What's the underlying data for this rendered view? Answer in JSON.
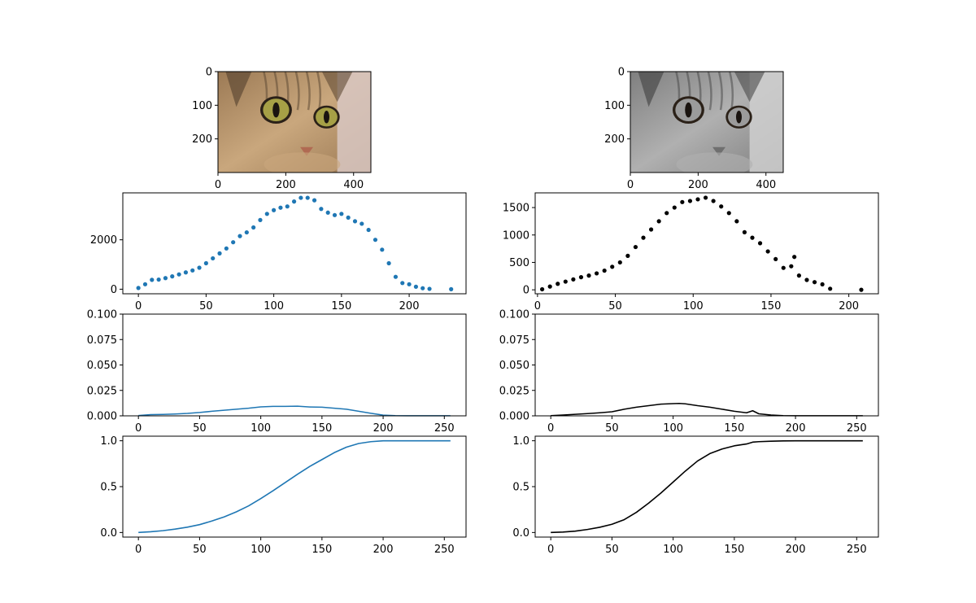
{
  "chart_data": [
    {
      "type": "image",
      "image": "cat-photo-color",
      "colors": {
        "fur_light": "#c9a77d",
        "fur_mid": "#9c7a55",
        "fur_dark": "#5f4a34",
        "eye": "#a6a046",
        "nose": "#b06a52",
        "bg": "#d8c7c2"
      },
      "xlim": [
        0,
        451
      ],
      "ylim": [
        300,
        0
      ],
      "xticks": [
        0,
        200,
        400
      ],
      "yticks": [
        0,
        100,
        200
      ]
    },
    {
      "type": "image",
      "image": "cat-photo-grayscale",
      "colors": {
        "fur_light": "#b0b0b0",
        "fur_mid": "#7f7f7f",
        "fur_dark": "#4a4a4a",
        "eye": "#9b9b9b",
        "nose": "#6f6f6f",
        "bg": "#cfcfcf"
      },
      "xlim": [
        0,
        451
      ],
      "ylim": [
        300,
        0
      ],
      "xticks": [
        0,
        200,
        400
      ],
      "yticks": [
        0,
        100,
        200
      ]
    },
    {
      "type": "scatter",
      "color": "#1f77b4",
      "xlim": [
        -11.5,
        242
      ],
      "ylim": [
        -185,
        3900
      ],
      "xticks": [
        0,
        50,
        100,
        150,
        200
      ],
      "yticks": [
        0,
        2000
      ],
      "series": [
        {
          "x": [
            0,
            5,
            10,
            15,
            20,
            25,
            30,
            35,
            40,
            45,
            50,
            55,
            60,
            65,
            70,
            75,
            80,
            85,
            90,
            95,
            100,
            105,
            110,
            115,
            120,
            125,
            130,
            135,
            140,
            145,
            150,
            155,
            160,
            165,
            170,
            175,
            180,
            185,
            190,
            195,
            200,
            205,
            210,
            215,
            231
          ],
          "y": [
            50,
            200,
            380,
            390,
            450,
            520,
            600,
            680,
            760,
            870,
            1050,
            1250,
            1450,
            1650,
            1900,
            2150,
            2300,
            2500,
            2800,
            3050,
            3200,
            3300,
            3350,
            3550,
            3700,
            3700,
            3600,
            3250,
            3100,
            3000,
            3050,
            2900,
            2750,
            2650,
            2400,
            2000,
            1600,
            1050,
            500,
            250,
            200,
            100,
            40,
            15,
            0
          ]
        }
      ]
    },
    {
      "type": "scatter",
      "color": "#000000",
      "xlim": [
        -1.5,
        219
      ],
      "ylim": [
        -72,
        1768
      ],
      "xticks": [
        0,
        50,
        100,
        150,
        200
      ],
      "yticks": [
        0,
        500,
        1000,
        1500
      ],
      "series": [
        {
          "x": [
            3,
            8,
            13,
            18,
            23,
            28,
            33,
            38,
            43,
            48,
            53,
            58,
            63,
            68,
            73,
            78,
            83,
            88,
            93,
            98,
            103,
            108,
            113,
            118,
            123,
            128,
            133,
            138,
            143,
            148,
            153,
            158,
            163,
            165,
            168,
            173,
            178,
            183,
            188,
            208
          ],
          "y": [
            10,
            60,
            110,
            150,
            190,
            230,
            260,
            300,
            350,
            420,
            500,
            620,
            780,
            950,
            1100,
            1250,
            1400,
            1500,
            1600,
            1620,
            1650,
            1680,
            1620,
            1520,
            1400,
            1250,
            1050,
            950,
            850,
            700,
            560,
            400,
            430,
            600,
            260,
            180,
            140,
            100,
            20,
            0
          ]
        }
      ]
    },
    {
      "type": "line",
      "color": "#1f77b4",
      "xlim": [
        -12.75,
        267.75
      ],
      "ylim": [
        0,
        0.1
      ],
      "xticks": [
        0,
        50,
        100,
        150,
        200,
        250
      ],
      "yticks": [
        0,
        0.025,
        0.05,
        0.075,
        0.1
      ],
      "series": [
        {
          "x": [
            0,
            10,
            20,
            30,
            40,
            50,
            60,
            70,
            80,
            90,
            100,
            110,
            120,
            130,
            140,
            150,
            160,
            170,
            180,
            190,
            200,
            210,
            220,
            230,
            240,
            255
          ],
          "y": [
            0.0003,
            0.0012,
            0.0014,
            0.0018,
            0.0024,
            0.0033,
            0.0045,
            0.0055,
            0.0065,
            0.0075,
            0.0088,
            0.0093,
            0.0093,
            0.0095,
            0.0087,
            0.0085,
            0.0075,
            0.0065,
            0.0045,
            0.0025,
            0.0007,
            0.0002,
            0.0001,
            0.0001,
            0.0001,
            0.0001
          ]
        }
      ]
    },
    {
      "type": "line",
      "color": "#000000",
      "xlim": [
        -12.75,
        267.75
      ],
      "ylim": [
        0,
        0.1
      ],
      "xticks": [
        0,
        50,
        100,
        150,
        200,
        250
      ],
      "yticks": [
        0,
        0.025,
        0.05,
        0.075,
        0.1
      ],
      "series": [
        {
          "x": [
            0,
            10,
            20,
            30,
            40,
            50,
            60,
            70,
            80,
            90,
            100,
            105,
            110,
            120,
            130,
            140,
            150,
            160,
            165,
            170,
            180,
            190,
            200,
            210,
            255
          ],
          "y": [
            0.0002,
            0.0008,
            0.0015,
            0.0022,
            0.003,
            0.004,
            0.0065,
            0.0085,
            0.01,
            0.0115,
            0.012,
            0.0122,
            0.0118,
            0.01,
            0.0085,
            0.0065,
            0.0045,
            0.003,
            0.005,
            0.002,
            0.0008,
            0.0002,
            0.0001,
            0.0001,
            0.0001
          ]
        }
      ]
    },
    {
      "type": "line",
      "color": "#1f77b4",
      "xlim": [
        -12.75,
        267.75
      ],
      "ylim": [
        -0.05,
        1.05
      ],
      "xticks": [
        0,
        50,
        100,
        150,
        200,
        250
      ],
      "yticks": [
        0.0,
        0.5,
        1.0
      ],
      "series": [
        {
          "x": [
            0,
            10,
            20,
            30,
            40,
            50,
            60,
            70,
            80,
            90,
            100,
            110,
            120,
            130,
            140,
            150,
            160,
            170,
            180,
            190,
            200,
            210,
            220,
            230,
            240,
            255
          ],
          "y": [
            0.0,
            0.008,
            0.02,
            0.037,
            0.058,
            0.086,
            0.125,
            0.17,
            0.225,
            0.29,
            0.37,
            0.455,
            0.545,
            0.635,
            0.72,
            0.795,
            0.87,
            0.93,
            0.97,
            0.99,
            1.0,
            1.0,
            1.0,
            1.0,
            1.0,
            1.0
          ]
        }
      ]
    },
    {
      "type": "line",
      "color": "#000000",
      "xlim": [
        -12.75,
        267.75
      ],
      "ylim": [
        -0.05,
        1.05
      ],
      "xticks": [
        0,
        50,
        100,
        150,
        200,
        250
      ],
      "yticks": [
        0.0,
        0.5,
        1.0
      ],
      "series": [
        {
          "x": [
            0,
            10,
            20,
            30,
            40,
            50,
            60,
            70,
            80,
            90,
            100,
            110,
            120,
            130,
            140,
            150,
            160,
            165,
            170,
            180,
            190,
            200,
            210,
            255
          ],
          "y": [
            0.0,
            0.005,
            0.015,
            0.033,
            0.057,
            0.09,
            0.14,
            0.22,
            0.32,
            0.43,
            0.55,
            0.67,
            0.78,
            0.86,
            0.91,
            0.945,
            0.965,
            0.985,
            0.99,
            0.995,
            0.998,
            1.0,
            1.0,
            1.0
          ]
        }
      ]
    }
  ]
}
